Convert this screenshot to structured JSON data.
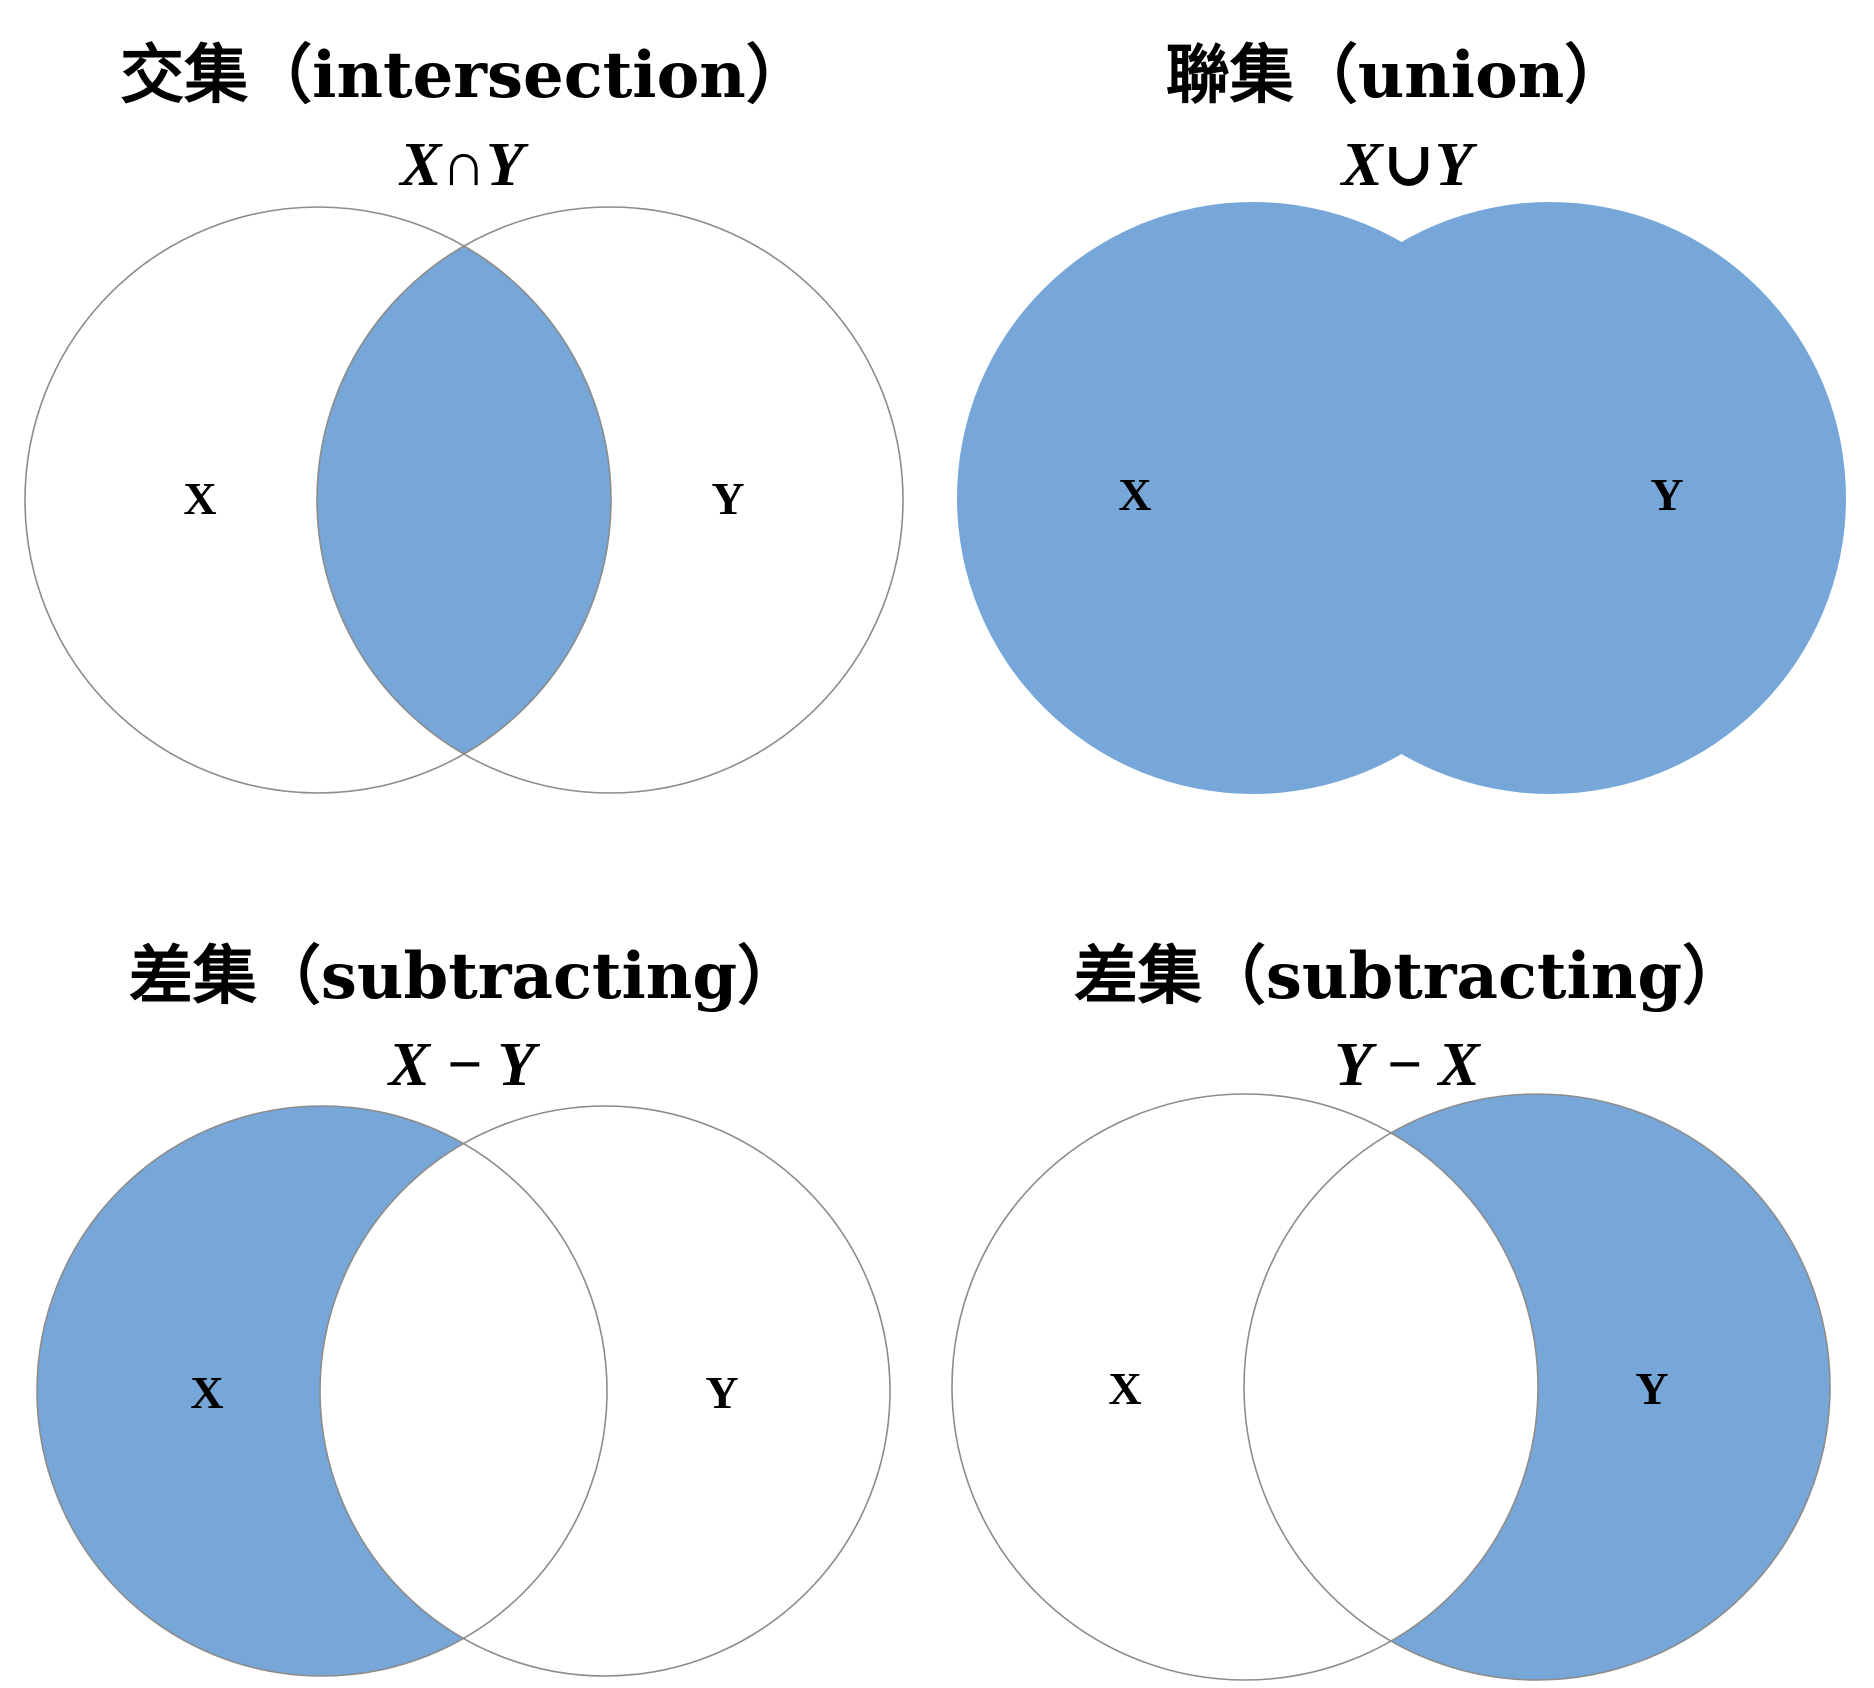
{
  "colors": {
    "fill": "#76a7d8",
    "outline": "#8c8c8c",
    "background": "#ffffff"
  },
  "panels": [
    {
      "id": "intersection",
      "title": "交集（intersection）",
      "formula": "X∩Y",
      "label_x": "X",
      "label_y": "Y",
      "shaded": "intersection"
    },
    {
      "id": "union",
      "title": "聯集（union）",
      "formula": "X∪Y",
      "label_x": "X",
      "label_y": "Y",
      "shaded": "union"
    },
    {
      "id": "difference-x-y",
      "title": "差集（subtracting）",
      "formula": "X − Y",
      "label_x": "X",
      "label_y": "Y",
      "shaded": "x-minus-y"
    },
    {
      "id": "difference-y-x",
      "title": "差集（subtracting）",
      "formula": "Y − X",
      "label_x": "X",
      "label_y": "Y",
      "shaded": "y-minus-x"
    }
  ]
}
